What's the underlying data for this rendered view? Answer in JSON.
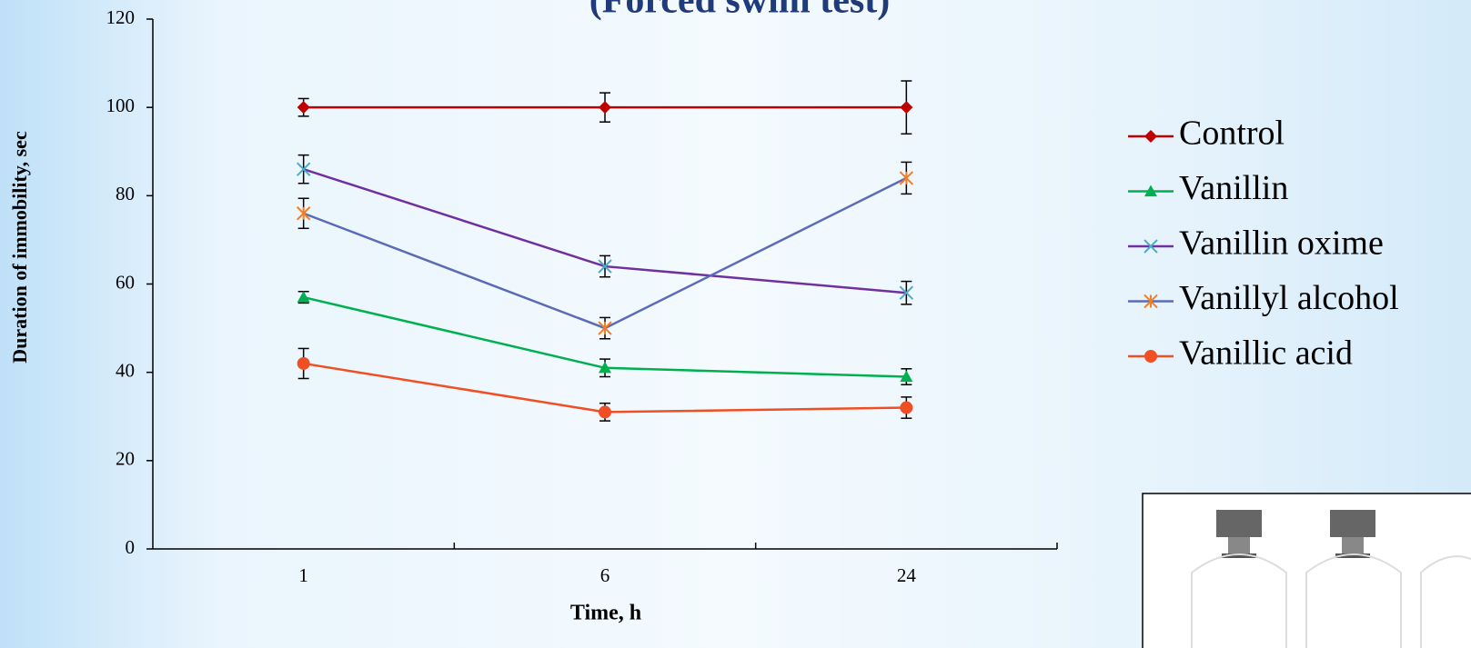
{
  "chart_data": {
    "type": "line",
    "title": "(Forced swim test)",
    "x_label": "Time, h",
    "y_label": "Duration of immobility, sec",
    "categories": [
      "1",
      "6",
      "24"
    ],
    "ylim": [
      0,
      120
    ],
    "yticks": [
      0,
      20,
      40,
      60,
      80,
      100,
      120
    ],
    "legend": "right",
    "series": [
      {
        "name": "Control",
        "color": "#c00000",
        "marker": "diamond",
        "marker_color": "#c00000",
        "values": [
          100,
          100,
          100
        ],
        "errors": [
          2,
          3.3,
          6
        ]
      },
      {
        "name": "Vanillin",
        "color": "#00b050",
        "marker": "triangle",
        "marker_color": "#00b050",
        "values": [
          57,
          41,
          39
        ],
        "errors": [
          1.3,
          2,
          1.8
        ]
      },
      {
        "name": "Vanillin oxime",
        "color": "#7030a0",
        "marker": "x",
        "marker_color": "#4bacc6",
        "values": [
          86,
          64,
          58
        ],
        "errors": [
          3.2,
          2.4,
          2.6
        ]
      },
      {
        "name": "Vanillyl alcohol",
        "color": "#5b6bb5",
        "marker": "asterisk",
        "marker_color": "#f07f2a",
        "values": [
          76,
          50,
          84
        ],
        "errors": [
          3.4,
          2.4,
          3.6
        ]
      },
      {
        "name": "Vanillic acid",
        "color": "#f04e23",
        "marker": "circle",
        "marker_color": "#f04e23",
        "values": [
          42,
          31,
          32
        ],
        "errors": [
          3.4,
          2,
          2.4
        ]
      }
    ]
  }
}
